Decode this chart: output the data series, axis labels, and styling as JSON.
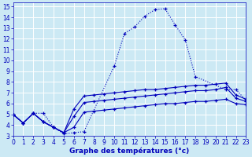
{
  "xlabel": "Graphe des températures (°c)",
  "background_color": "#cce9f4",
  "grid_color": "#ffffff",
  "line_color": "#0000bb",
  "xlim": [
    0,
    23
  ],
  "ylim": [
    3,
    15.4
  ],
  "xticks": [
    0,
    1,
    2,
    3,
    4,
    5,
    6,
    7,
    8,
    9,
    10,
    11,
    12,
    13,
    14,
    15,
    16,
    17,
    18,
    19,
    20,
    21,
    22,
    23
  ],
  "yticks": [
    3,
    4,
    5,
    6,
    7,
    8,
    9,
    10,
    11,
    12,
    13,
    14,
    15
  ],
  "c1_x": [
    0,
    1,
    2,
    3,
    4,
    5,
    6,
    7,
    10,
    11,
    12,
    13,
    14,
    15,
    16,
    17,
    18,
    21,
    22,
    23
  ],
  "c1_y": [
    5.0,
    4.2,
    5.1,
    5.1,
    3.8,
    3.2,
    3.3,
    3.4,
    9.5,
    12.5,
    13.1,
    14.1,
    14.7,
    14.8,
    13.3,
    11.9,
    8.5,
    7.3,
    7.3,
    6.3
  ],
  "c2_x": [
    0,
    1,
    2,
    3,
    4,
    5,
    6,
    7,
    8,
    9,
    10,
    11,
    12,
    13,
    14,
    15,
    16,
    17,
    18,
    19,
    20,
    21,
    22,
    23
  ],
  "c2_y": [
    5.0,
    4.2,
    5.1,
    4.3,
    3.8,
    3.3,
    3.8,
    5.2,
    5.3,
    5.4,
    5.5,
    5.6,
    5.7,
    5.8,
    5.9,
    6.0,
    6.0,
    6.1,
    6.2,
    6.2,
    6.3,
    6.4,
    6.0,
    5.9
  ],
  "c3_x": [
    0,
    1,
    2,
    3,
    4,
    5,
    6,
    7,
    8,
    9,
    10,
    11,
    12,
    13,
    14,
    15,
    16,
    17,
    18,
    19,
    20,
    21,
    22,
    23
  ],
  "c3_y": [
    5.0,
    4.2,
    5.1,
    4.3,
    3.8,
    3.3,
    4.8,
    6.1,
    6.2,
    6.3,
    6.4,
    6.5,
    6.6,
    6.7,
    6.8,
    6.9,
    7.0,
    7.1,
    7.2,
    7.2,
    7.3,
    7.5,
    6.5,
    6.2
  ],
  "c4_x": [
    0,
    1,
    2,
    3,
    4,
    5,
    6,
    7,
    8,
    9,
    10,
    11,
    12,
    13,
    14,
    15,
    16,
    17,
    18,
    19,
    20,
    21,
    22,
    23
  ],
  "c4_y": [
    5.0,
    4.2,
    5.1,
    4.3,
    3.8,
    3.3,
    5.5,
    6.7,
    6.8,
    6.9,
    7.0,
    7.1,
    7.2,
    7.3,
    7.3,
    7.4,
    7.5,
    7.6,
    7.7,
    7.7,
    7.8,
    7.9,
    6.8,
    6.4
  ]
}
